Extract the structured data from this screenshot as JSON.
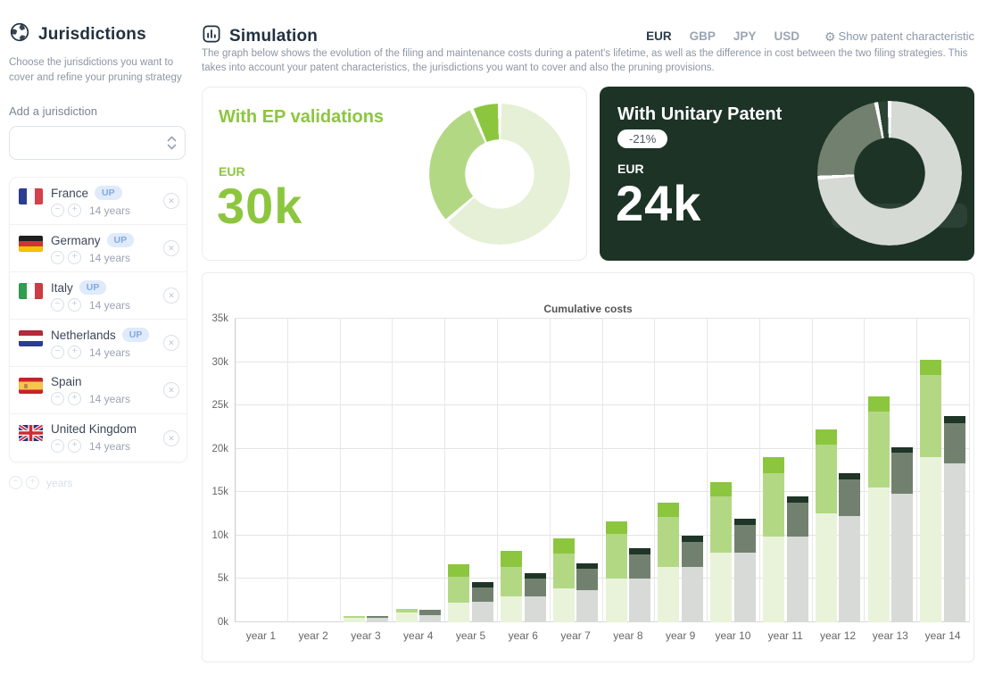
{
  "sidebar": {
    "title": "Jurisdictions",
    "description": "Choose the jurisdictions you want to cover and refine your pruning strategy",
    "add_label": "Add a jurisdiction",
    "select_value": "",
    "jurisdictions": [
      {
        "name": "France",
        "code": "fr",
        "up": true,
        "years": "14 years"
      },
      {
        "name": "Germany",
        "code": "de",
        "up": true,
        "years": "14 years"
      },
      {
        "name": "Italy",
        "code": "it",
        "up": true,
        "years": "14 years"
      },
      {
        "name": "Netherlands",
        "code": "nl",
        "up": true,
        "years": "14 years"
      },
      {
        "name": "Spain",
        "code": "es",
        "up": false,
        "years": "14 years"
      },
      {
        "name": "United Kingdom",
        "code": "gb",
        "up": false,
        "years": "14 years"
      }
    ],
    "controls": {
      "minus": "−",
      "plus": "+",
      "remove": "✕",
      "footer_label": "years"
    }
  },
  "header": {
    "title": "Simulation",
    "description": "The graph below shows the evolution of the filing and maintenance costs during a patent's lifetime, as well as the difference in cost between the two filing strategies. This takes into account your patent characteristics, the jurisdictions you want to cover and also the pruning provisions.",
    "currencies": [
      "EUR",
      "GBP",
      "JPY",
      "USD"
    ],
    "active_currency": "EUR",
    "show_characteristics_label": "Show patent characteristic",
    "gear_icon": "⚙"
  },
  "cards": {
    "ep": {
      "title": "With EP validations",
      "currency": "EUR",
      "amount": "30k",
      "accent_color": "#8cc63f",
      "donut": {
        "values": [
          63.5,
          30,
          6.5
        ],
        "colors": [
          "#e5f0d6",
          "#b3d884",
          "#8cc63f"
        ]
      }
    },
    "up": {
      "title": "With Unitary Patent",
      "badge": "-21%",
      "currency": "EUR",
      "amount": "24k",
      "background_color": "#1c3326",
      "donut": {
        "values": [
          74,
          23,
          3
        ],
        "colors": [
          "#d6dad5",
          "#72816f",
          "#2a4434"
        ]
      }
    }
  },
  "chart_data": {
    "type": "bar",
    "subtype": "grouped-stacked",
    "title": "Cumulative costs",
    "categories": [
      "year 1",
      "year 2",
      "year 3",
      "year 4",
      "year 5",
      "year 6",
      "year 7",
      "year 8",
      "year 9",
      "year 10",
      "year 11",
      "year 12",
      "year 13",
      "year 14"
    ],
    "unit": "k (thousands, EUR)",
    "ylim": [
      0,
      35
    ],
    "ytick_step": 5,
    "yticks": [
      "0k",
      "5k",
      "10k",
      "15k",
      "20k",
      "25k",
      "30k",
      "35k"
    ],
    "grid": true,
    "groups": [
      {
        "name": "With EP validations",
        "totals": [
          0,
          0,
          0.7,
          1.5,
          6.7,
          8.2,
          9.7,
          11.6,
          13.8,
          16.2,
          19.0,
          22.2,
          26.0,
          30.3
        ],
        "stacks": [
          {
            "color": "#e9f3da",
            "values": [
              0,
              0,
              0.5,
              1.1,
              2.3,
              3.0,
              3.9,
              5.0,
              6.4,
              8.0,
              9.9,
              12.6,
              15.5,
              19.0
            ]
          },
          {
            "color": "#b3d884",
            "values": [
              0,
              0,
              0.2,
              0.4,
              3.0,
              3.4,
              4.0,
              5.2,
              5.8,
              6.5,
              7.3,
              7.9,
              8.8,
              9.5
            ]
          },
          {
            "color": "#8cc63f",
            "values": [
              0,
              0,
              0,
              0,
              1.4,
              1.8,
              1.8,
              1.4,
              1.6,
              1.7,
              1.8,
              1.7,
              1.7,
              1.8
            ]
          }
        ]
      },
      {
        "name": "With Unitary Patent",
        "totals": [
          0,
          0,
          0.75,
          1.4,
          4.6,
          5.65,
          6.8,
          8.5,
          10.0,
          11.95,
          14.5,
          17.2,
          20.2,
          23.8
        ],
        "stacks": [
          {
            "color": "#d7dad6",
            "values": [
              0,
              0,
              0.5,
              0.85,
              2.35,
              3.0,
              3.7,
              5.0,
              6.4,
              8.0,
              9.9,
              12.25,
              14.8,
              18.3
            ]
          },
          {
            "color": "#72816f",
            "values": [
              0,
              0,
              0.25,
              0.55,
              1.7,
              2.05,
              2.5,
              2.8,
              2.9,
              3.25,
              3.9,
              4.25,
              4.8,
              4.7
            ]
          },
          {
            "color": "#1e3527",
            "values": [
              0,
              0,
              0,
              0,
              0.55,
              0.6,
              0.6,
              0.7,
              0.7,
              0.7,
              0.7,
              0.7,
              0.6,
              0.8
            ]
          }
        ]
      }
    ]
  }
}
